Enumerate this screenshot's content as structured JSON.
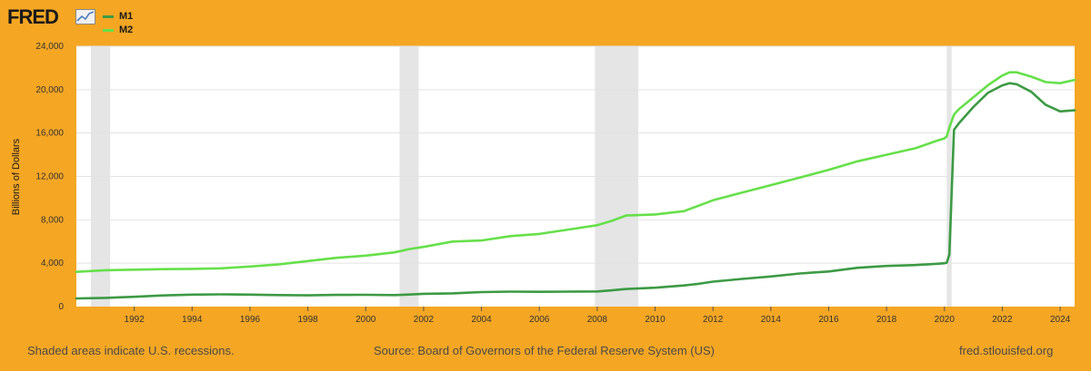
{
  "header": {
    "logo_text": "FRED",
    "logo_graph_icon": "line-graph-icon"
  },
  "colors": {
    "background": "#f5a623",
    "plot_background": "#ffffff",
    "recession_shade": "#e5e5e5",
    "m1": "#3c9a44",
    "m2": "#66e04a"
  },
  "chart_data": {
    "type": "line",
    "title": "",
    "xlabel": "",
    "ylabel": "Billions of Dollars",
    "xlim": [
      1990.0,
      2024.5
    ],
    "ylim": [
      0,
      24000
    ],
    "grid": true,
    "legend_position": "top-left",
    "x_ticks": [
      "1992",
      "1994",
      "1996",
      "1998",
      "2000",
      "2002",
      "2004",
      "2006",
      "2008",
      "2010",
      "2012",
      "2014",
      "2016",
      "2018",
      "2020",
      "2022",
      "2024"
    ],
    "y_ticks": [
      "0",
      "4,000",
      "8,000",
      "12,000",
      "16,000",
      "20,000",
      "24,000"
    ],
    "recessions": [
      [
        1990.5,
        1991.17
      ],
      [
        2001.17,
        2001.83
      ],
      [
        2007.92,
        2009.42
      ],
      [
        2020.08,
        2020.25
      ]
    ],
    "x": [
      1990.0,
      1991.0,
      1992.0,
      1993.0,
      1994.0,
      1995.0,
      1996.0,
      1997.0,
      1998.0,
      1999.0,
      2000.0,
      2001.0,
      2001.5,
      2002.0,
      2003.0,
      2004.0,
      2005.0,
      2006.0,
      2007.0,
      2008.0,
      2008.5,
      2009.0,
      2010.0,
      2011.0,
      2011.5,
      2012.0,
      2013.0,
      2014.0,
      2015.0,
      2016.0,
      2017.0,
      2018.0,
      2019.0,
      2019.75,
      2020.0,
      2020.08,
      2020.17,
      2020.33,
      2020.5,
      2021.0,
      2021.5,
      2022.0,
      2022.25,
      2022.5,
      2023.0,
      2023.5,
      2024.0,
      2024.5
    ],
    "series": [
      {
        "name": "M1",
        "values": [
          750,
          800,
          900,
          1030,
          1100,
          1130,
          1100,
          1060,
          1040,
          1080,
          1090,
          1060,
          1110,
          1180,
          1220,
          1340,
          1380,
          1360,
          1380,
          1400,
          1500,
          1620,
          1740,
          1950,
          2100,
          2300,
          2550,
          2780,
          3050,
          3240,
          3580,
          3750,
          3830,
          3950,
          4000,
          4050,
          4800,
          16300,
          16900,
          18400,
          19700,
          20400,
          20600,
          20500,
          19800,
          18600,
          18000,
          18100
        ]
      },
      {
        "name": "M2",
        "values": [
          3200,
          3350,
          3400,
          3450,
          3480,
          3530,
          3700,
          3900,
          4200,
          4500,
          4700,
          5000,
          5300,
          5500,
          6000,
          6100,
          6500,
          6700,
          7100,
          7500,
          7900,
          8400,
          8500,
          8800,
          9300,
          9800,
          10500,
          11200,
          11900,
          12600,
          13400,
          14000,
          14600,
          15300,
          15500,
          15700,
          16500,
          17700,
          18200,
          19300,
          20400,
          21300,
          21600,
          21600,
          21200,
          20700,
          20600,
          20900
        ]
      }
    ]
  },
  "footer": {
    "recession_note": "Shaded areas indicate U.S. recessions.",
    "source": "Source: Board of Governors of the Federal Reserve System (US)",
    "site": "fred.stlouisfed.org"
  }
}
